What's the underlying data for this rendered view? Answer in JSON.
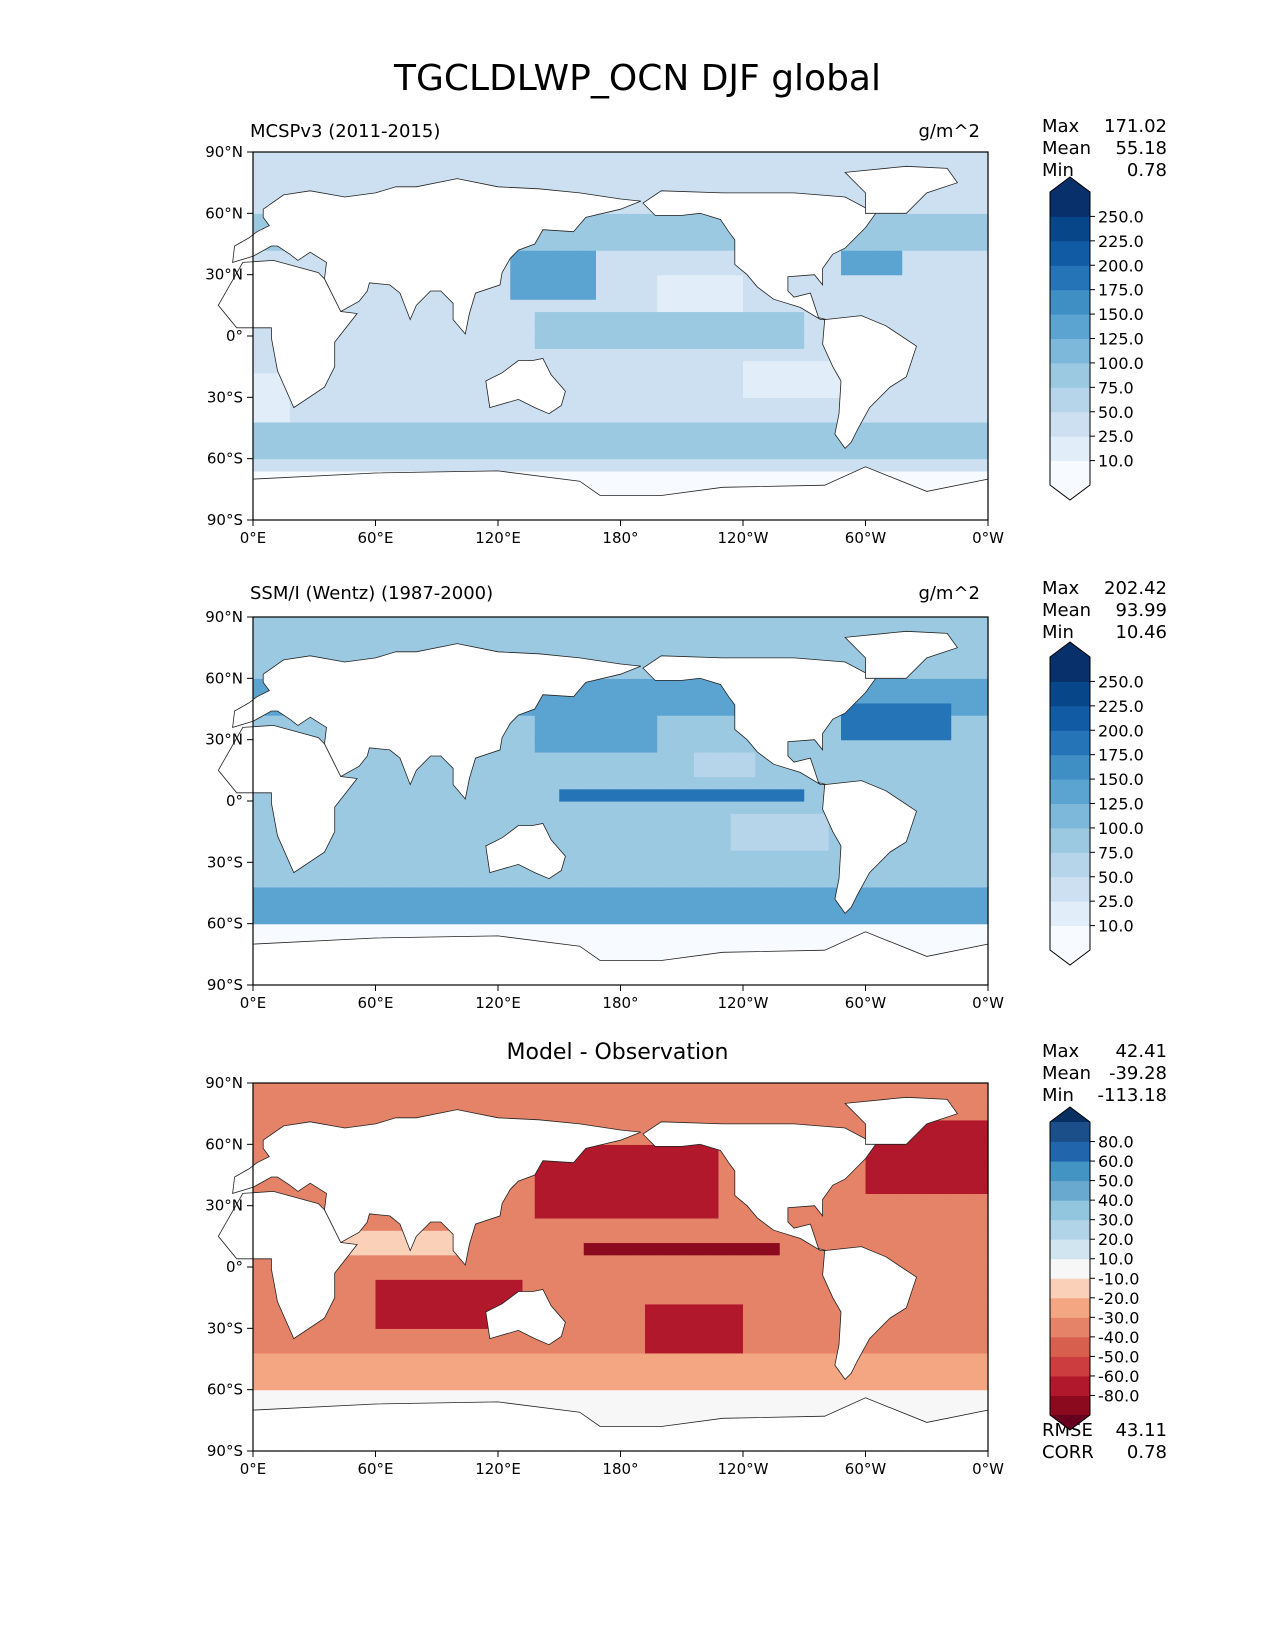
{
  "figure_title": "TGCLDLWP_OCN DJF global",
  "lat_ticks": [
    "90°N",
    "60°N",
    "30°N",
    "0°",
    "30°S",
    "60°S",
    "90°S"
  ],
  "lon_ticks": [
    "0°E",
    "60°E",
    "120°E",
    "180°",
    "120°W",
    "60°W",
    "0°W"
  ],
  "panels": [
    {
      "id": "test",
      "title": "MCSPv3 (2011-2015)",
      "units": "g/m^2",
      "stats": [
        {
          "label": "Max",
          "value": "171.02"
        },
        {
          "label": "Mean",
          "value": "55.18"
        },
        {
          "label": "Min",
          "value": "0.78"
        }
      ],
      "colorbar": {
        "ticks": [
          "250.0",
          "225.0",
          "200.0",
          "175.0",
          "150.0",
          "125.0",
          "100.0",
          "75.0",
          "50.0",
          "25.0",
          "10.0"
        ],
        "colors": [
          "#f7fbff",
          "#e1edf8",
          "#cde0f2",
          "#b7d5ea",
          "#9cc9e2",
          "#7db8da",
          "#5ba3d0",
          "#3f8fc5",
          "#2474b7",
          "#105ba4",
          "#08468a",
          "#08306b"
        ],
        "extend_top": "#08306b",
        "extend_bottom": "#f7fbff"
      }
    },
    {
      "id": "reference",
      "title": "SSM/I (Wentz) (1987-2000)",
      "units": "g/m^2",
      "stats": [
        {
          "label": "Max",
          "value": "202.42"
        },
        {
          "label": "Mean",
          "value": "93.99"
        },
        {
          "label": "Min",
          "value": "10.46"
        }
      ],
      "colorbar": {
        "ticks": [
          "250.0",
          "225.0",
          "200.0",
          "175.0",
          "150.0",
          "125.0",
          "100.0",
          "75.0",
          "50.0",
          "25.0",
          "10.0"
        ],
        "colors": [
          "#f7fbff",
          "#e1edf8",
          "#cde0f2",
          "#b7d5ea",
          "#9cc9e2",
          "#7db8da",
          "#5ba3d0",
          "#3f8fc5",
          "#2474b7",
          "#105ba4",
          "#08468a",
          "#08306b"
        ],
        "extend_top": "#08306b",
        "extend_bottom": "#f7fbff"
      }
    },
    {
      "id": "diff",
      "title": "Model - Observation",
      "stats": [
        {
          "label": "Max",
          "value": "42.41"
        },
        {
          "label": "Mean",
          "value": "-39.28"
        },
        {
          "label": "Min",
          "value": "-113.18"
        }
      ],
      "extra_stats": [
        {
          "label": "RMSE",
          "value": "43.11"
        },
        {
          "label": "CORR",
          "value": "0.78"
        }
      ],
      "colorbar": {
        "ticks": [
          "80.0",
          "60.0",
          "50.0",
          "40.0",
          "30.0",
          "20.0",
          "10.0",
          "-10.0",
          "-20.0",
          "-30.0",
          "-40.0",
          "-50.0",
          "-60.0",
          "-80.0"
        ],
        "colors": [
          "#8b0a1e",
          "#b2182b",
          "#cb3d3e",
          "#d6604d",
          "#e58368",
          "#f4a582",
          "#fbd0b9",
          "#f7f7f7",
          "#d1e5f0",
          "#b2d4e8",
          "#92c5de",
          "#6aa9cf",
          "#4393c3",
          "#2166ac",
          "#1a4f8a"
        ],
        "extend_top": "#053061",
        "extend_bottom": "#67001f"
      }
    }
  ],
  "chart_data": {
    "type": "heatmap",
    "title": "TGCLDLWP_OCN DJF global",
    "subplots": [
      {
        "title": "MCSPv3 (2011-2015)",
        "units": "g/m^2",
        "xlim": [
          0,
          360
        ],
        "ylim": [
          -90,
          90
        ],
        "colorbar_levels": [
          10,
          25,
          50,
          75,
          100,
          125,
          150,
          175,
          200,
          225,
          250
        ],
        "stats": {
          "Max": 171.02,
          "Mean": 55.18,
          "Min": 0.78
        }
      },
      {
        "title": "SSM/I (Wentz) (1987-2000)",
        "units": "g/m^2",
        "xlim": [
          0,
          360
        ],
        "ylim": [
          -90,
          90
        ],
        "colorbar_levels": [
          10,
          25,
          50,
          75,
          100,
          125,
          150,
          175,
          200,
          225,
          250
        ],
        "stats": {
          "Max": 202.42,
          "Mean": 93.99,
          "Min": 10.46
        }
      },
      {
        "title": "Model - Observation",
        "xlim": [
          0,
          360
        ],
        "ylim": [
          -90,
          90
        ],
        "colorbar_levels": [
          -80,
          -60,
          -50,
          -40,
          -30,
          -20,
          -10,
          10,
          20,
          30,
          40,
          50,
          60,
          80
        ],
        "stats": {
          "Max": 42.41,
          "Mean": -39.28,
          "Min": -113.18,
          "RMSE": 43.11,
          "CORR": 0.78
        }
      }
    ]
  }
}
